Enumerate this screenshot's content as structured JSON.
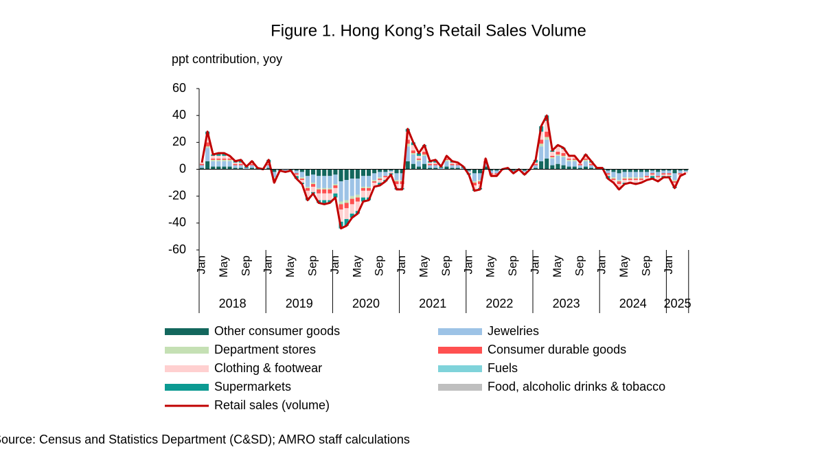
{
  "chart_data": {
    "type": "stacked-bar-line",
    "title": "Figure 1. Hong Kong’s Retail Sales Volume",
    "y_label": "ppt contribution, yoy",
    "source": "Source: Census and Statistics Department (C&SD); AMRO staff calculations",
    "categories": [
      "Jan",
      null,
      null,
      null,
      "May",
      null,
      null,
      null,
      "Sep",
      null,
      null,
      null,
      "Jan",
      null,
      null,
      null,
      "May",
      null,
      null,
      null,
      "Sep",
      null,
      null,
      null,
      "Jan",
      null,
      null,
      null,
      "May",
      null,
      null,
      null,
      "Sep",
      null,
      null,
      null,
      "Jan",
      null,
      null,
      null,
      "May",
      null,
      null,
      null,
      "Sep",
      null,
      null,
      null,
      "Jan",
      null,
      null,
      null,
      "May",
      null,
      null,
      null,
      "Sep",
      null,
      null,
      null,
      "Jan",
      null,
      null,
      null,
      "May",
      null,
      null,
      null,
      "Sep",
      null,
      null,
      null,
      "Jan",
      null,
      null,
      null,
      "May",
      null,
      null,
      null,
      "Sep",
      null,
      null,
      null,
      "Jan",
      null,
      null,
      null
    ],
    "years": [
      "2018",
      "2019",
      "2020",
      "2021",
      "2022",
      "2023",
      "2024",
      "2025"
    ],
    "ylim": [
      -60,
      60
    ],
    "yticks": [
      -60,
      -40,
      -20,
      0,
      20,
      40,
      60
    ],
    "series": [
      {
        "name": "Other consumer goods",
        "color": "#13675d",
        "values": [
          1,
          6,
          2,
          2,
          2,
          2,
          1,
          1,
          0,
          1,
          0,
          0,
          1,
          -2,
          0,
          0,
          0,
          -1,
          -2,
          -5,
          -4,
          -5,
          -5,
          -5,
          -4,
          -9,
          -8,
          -7,
          -7,
          -5,
          -5,
          -3,
          -2,
          -2,
          -1,
          -3,
          -3,
          6,
          4,
          2,
          4,
          1,
          1,
          0,
          2,
          1,
          1,
          0,
          -1,
          -3,
          -3,
          2,
          -1,
          -1,
          0,
          0,
          -1,
          0,
          -1,
          0,
          1,
          6,
          8,
          3,
          4,
          3,
          2,
          2,
          1,
          2,
          1,
          0,
          0,
          -1,
          -2,
          -3,
          -2,
          -2,
          -2,
          -2,
          -2,
          -1,
          -2,
          -1,
          -1,
          -3,
          -1,
          -1
        ]
      },
      {
        "name": "Jewelries",
        "color": "#9dc3e6",
        "values": [
          2,
          10,
          4,
          4,
          4,
          4,
          2,
          2,
          1,
          2,
          0,
          0,
          2,
          -4,
          0,
          -1,
          0,
          -2,
          -4,
          -8,
          -6,
          -9,
          -9,
          -9,
          -7,
          -15,
          -15,
          -13,
          -12,
          -8,
          -8,
          -5,
          -4,
          -3,
          -1,
          -5,
          -5,
          11,
          7,
          4,
          6,
          2,
          2,
          1,
          4,
          2,
          2,
          1,
          -1,
          -6,
          -5,
          3,
          -2,
          -2,
          0,
          0,
          -1,
          0,
          -1,
          0,
          2,
          11,
          14,
          5,
          6,
          6,
          4,
          4,
          2,
          4,
          2,
          0,
          0,
          -2,
          -4,
          -5,
          -4,
          -4,
          -4,
          -4,
          -3,
          -2,
          -3,
          -2,
          -2,
          -5,
          -2,
          -1
        ]
      },
      {
        "name": "Department stores",
        "color": "#c5e0b4",
        "values": [
          0,
          1,
          1,
          1,
          1,
          1,
          0,
          0,
          0,
          0,
          0,
          0,
          0,
          -1,
          0,
          0,
          0,
          0,
          -1,
          -1,
          -1,
          -1,
          -1,
          -1,
          -1,
          -2,
          -2,
          -2,
          -2,
          -1,
          -1,
          -1,
          -1,
          0,
          0,
          -1,
          -1,
          2,
          1,
          1,
          1,
          0,
          0,
          0,
          1,
          0,
          0,
          0,
          0,
          -1,
          -1,
          0,
          0,
          0,
          0,
          0,
          0,
          0,
          0,
          0,
          0,
          2,
          2,
          1,
          1,
          1,
          1,
          1,
          0,
          1,
          0,
          0,
          0,
          0,
          -1,
          -1,
          -1,
          -1,
          -1,
          -1,
          0,
          0,
          0,
          0,
          0,
          -1,
          0,
          0
        ]
      },
      {
        "name": "Consumer durable goods",
        "color": "#ff5050",
        "values": [
          1,
          3,
          1,
          1,
          1,
          1,
          1,
          1,
          0,
          1,
          0,
          0,
          1,
          -1,
          0,
          0,
          0,
          -1,
          -1,
          -2,
          -2,
          -3,
          -3,
          -3,
          -2,
          -4,
          -4,
          -4,
          -3,
          -2,
          -2,
          -1,
          -1,
          -1,
          0,
          -2,
          -2,
          3,
          2,
          1,
          2,
          1,
          1,
          0,
          1,
          1,
          1,
          0,
          0,
          -2,
          -2,
          1,
          -1,
          -1,
          0,
          0,
          0,
          0,
          0,
          0,
          1,
          3,
          4,
          1,
          2,
          2,
          1,
          1,
          1,
          1,
          1,
          0,
          0,
          -1,
          -1,
          -2,
          -1,
          -1,
          -1,
          -1,
          -1,
          -1,
          -1,
          -1,
          -1,
          -1,
          -1,
          0
        ]
      },
      {
        "name": "Clothing & footwear",
        "color": "#ffd0d0",
        "values": [
          1,
          6,
          2,
          2,
          2,
          2,
          1,
          1,
          0,
          1,
          0,
          0,
          1,
          -2,
          0,
          0,
          0,
          -1,
          -2,
          -5,
          -4,
          -5,
          -5,
          -5,
          -4,
          -9,
          -8,
          -7,
          -7,
          -5,
          -5,
          -3,
          -2,
          -2,
          -1,
          -3,
          -3,
          6,
          4,
          2,
          4,
          1,
          1,
          0,
          2,
          1,
          1,
          0,
          -1,
          -3,
          -3,
          2,
          -1,
          -1,
          0,
          0,
          -1,
          0,
          -1,
          0,
          1,
          6,
          8,
          3,
          4,
          3,
          2,
          2,
          1,
          2,
          1,
          0,
          0,
          -1,
          -2,
          -3,
          -2,
          -2,
          -2,
          -2,
          -2,
          -1,
          -2,
          -1,
          -1,
          -3,
          -1,
          -1
        ]
      },
      {
        "name": "Fuels",
        "color": "#7fd3da",
        "values": [
          0,
          0,
          0,
          0,
          0,
          0,
          0,
          0,
          0,
          0,
          0,
          0,
          0,
          0,
          0,
          0,
          0,
          0,
          0,
          0,
          0,
          0,
          0,
          0,
          0,
          0,
          0,
          0,
          0,
          0,
          0,
          0,
          0,
          0,
          0,
          0,
          0,
          0,
          0,
          0,
          0,
          0,
          0,
          0,
          0,
          0,
          0,
          0,
          0,
          0,
          0,
          0,
          0,
          0,
          0,
          0,
          0,
          0,
          0,
          0,
          0,
          0,
          0,
          0,
          0,
          0,
          0,
          0,
          0,
          0,
          0,
          0,
          0,
          0,
          0,
          0,
          0,
          0,
          0,
          0,
          0,
          0,
          0,
          0,
          0,
          0,
          0,
          0
        ]
      },
      {
        "name": "Supermarkets",
        "color": "#0c9a92",
        "values": [
          0,
          2,
          1,
          2,
          2,
          0,
          1,
          2,
          1,
          1,
          1,
          0,
          2,
          0,
          -1,
          -1,
          -1,
          -2,
          -1,
          -2,
          -1,
          -2,
          -3,
          -2,
          -3,
          -5,
          -5,
          -3,
          -2,
          -3,
          -2,
          0,
          -2,
          -1,
          -1,
          -1,
          -1,
          2,
          2,
          2,
          1,
          1,
          2,
          1,
          0,
          1,
          0,
          1,
          -1,
          -1,
          -1,
          0,
          0,
          0,
          0,
          1,
          0,
          0,
          -1,
          0,
          2,
          4,
          4,
          1,
          1,
          1,
          0,
          0,
          0,
          1,
          1,
          1,
          1,
          -2,
          0,
          -1,
          -1,
          0,
          -1,
          0,
          0,
          -2,
          -1,
          -1,
          -1,
          -1,
          0,
          0
        ]
      },
      {
        "name": "Food, alcoholic drinks & tobacco",
        "color": "#bfbfbf",
        "values": [
          0,
          0,
          0,
          0,
          0,
          0,
          0,
          0,
          0,
          0,
          0,
          0,
          0,
          0,
          0,
          0,
          0,
          0,
          0,
          0,
          0,
          0,
          0,
          0,
          0,
          0,
          0,
          0,
          0,
          0,
          0,
          0,
          0,
          0,
          0,
          0,
          0,
          0,
          0,
          0,
          0,
          0,
          0,
          0,
          0,
          0,
          0,
          0,
          0,
          0,
          0,
          0,
          0,
          0,
          0,
          0,
          0,
          0,
          0,
          0,
          0,
          0,
          0,
          0,
          0,
          0,
          0,
          0,
          0,
          0,
          0,
          0,
          0,
          0,
          0,
          0,
          0,
          0,
          0,
          0,
          0,
          0,
          0,
          0,
          0,
          0,
          0,
          0
        ]
      }
    ],
    "line": {
      "name": "Retail sales (volume)",
      "color": "#c00000",
      "values": [
        5,
        28,
        11,
        12,
        12,
        10,
        6,
        7,
        2,
        6,
        1,
        0,
        7,
        -10,
        -1,
        -2,
        -1,
        -7,
        -11,
        -23,
        -18,
        -25,
        -26,
        -25,
        -21,
        -44,
        -42,
        -36,
        -33,
        -24,
        -23,
        -13,
        -12,
        -9,
        -4,
        -15,
        -15,
        30,
        20,
        12,
        18,
        6,
        7,
        2,
        10,
        6,
        5,
        2,
        -4,
        -16,
        -15,
        8,
        -5,
        -5,
        0,
        1,
        -3,
        0,
        -4,
        0,
        7,
        32,
        40,
        14,
        18,
        16,
        10,
        10,
        5,
        11,
        6,
        1,
        1,
        -7,
        -10,
        -15,
        -11,
        -10,
        -11,
        -10,
        -8,
        -7,
        -9,
        -6,
        -6,
        -14,
        -5,
        -3
      ]
    }
  }
}
